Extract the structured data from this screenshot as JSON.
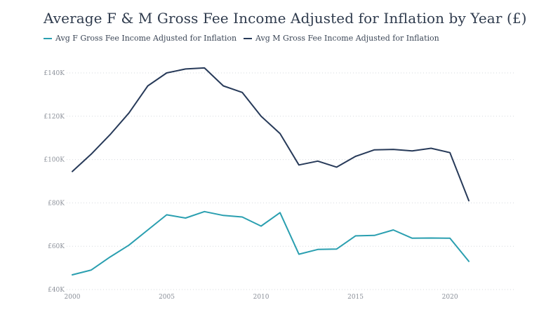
{
  "chart_data": {
    "type": "line",
    "title": "Average F & M Gross Fee Income Adjusted for Inflation by Year (£)",
    "xlabel": "",
    "ylabel": "",
    "xlim": [
      2000,
      2021
    ],
    "ylim": [
      40000,
      140000
    ],
    "y_ticks": [
      40000,
      60000,
      80000,
      100000,
      120000,
      140000
    ],
    "y_tick_labels": [
      "£40K",
      "£60K",
      "£80K",
      "£100K",
      "£120K",
      "£140K"
    ],
    "x_ticks": [
      2000,
      2005,
      2010,
      2015,
      2020
    ],
    "x_tick_labels": [
      "2000",
      "2005",
      "2010",
      "2015",
      "2020"
    ],
    "grid": true,
    "legend": "top-left",
    "x": [
      2000,
      2001,
      2002,
      2003,
      2004,
      2005,
      2006,
      2007,
      2008,
      2009,
      2010,
      2011,
      2012,
      2013,
      2014,
      2015,
      2016,
      2017,
      2018,
      2019,
      2020,
      2021
    ],
    "series": [
      {
        "name": "Avg F Gross Fee Income Adjusted for Inflation",
        "color": "#2a9fb0",
        "values": [
          46800,
          49000,
          55000,
          60500,
          67500,
          74500,
          73000,
          76000,
          74200,
          73500,
          69300,
          75500,
          56300,
          58500,
          58700,
          64800,
          65000,
          67500,
          63700,
          63800,
          63700,
          53000
        ]
      },
      {
        "name": "Avg M Gross Fee Income Adjusted for Inflation",
        "color": "#273a59",
        "values": [
          94500,
          102500,
          111500,
          121500,
          134000,
          140000,
          141800,
          142300,
          134000,
          131000,
          120000,
          112000,
          97500,
          99300,
          96500,
          101500,
          104500,
          104700,
          104000,
          105200,
          103200,
          81000
        ]
      }
    ]
  }
}
